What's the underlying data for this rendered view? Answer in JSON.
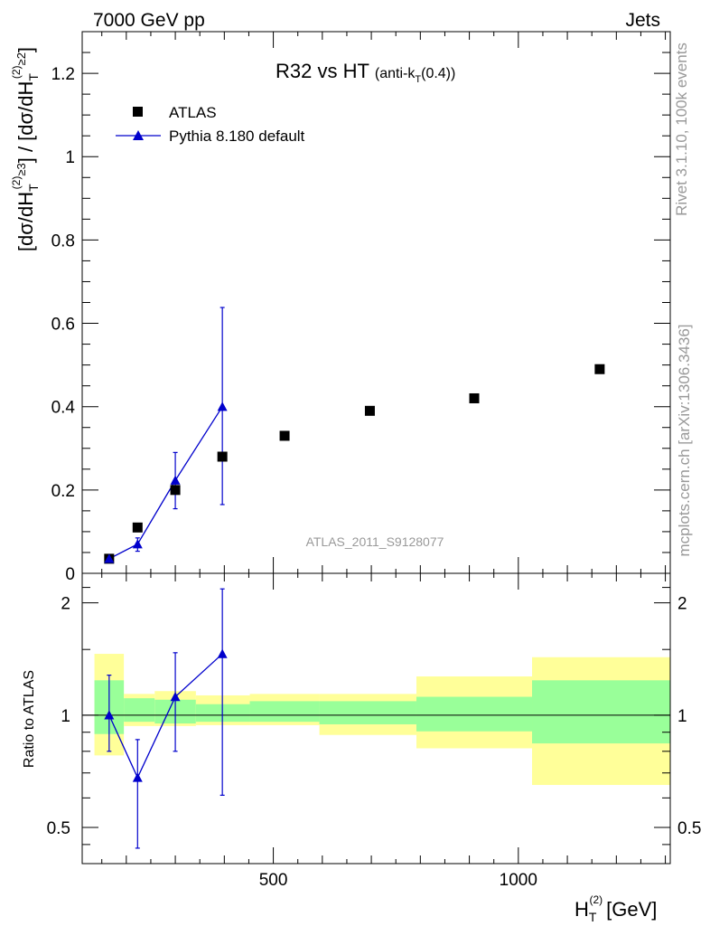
{
  "header": {
    "energy_label": "7000 GeV pp",
    "process_label": "Jets"
  },
  "side_labels": {
    "rivet": "Rivet 3.1.10,  100k events",
    "mcplots": "mcplots.cern.ch [arXiv:1306.3436]"
  },
  "colors": {
    "data": "#000000",
    "mc": "#0000cc",
    "band_outer": "#ffff99",
    "band_inner": "#99ff99",
    "watermark": "#999999"
  },
  "chart_data": [
    {
      "type": "scatter",
      "panel": "main",
      "title": "R32 vs HT",
      "title_suffix": "(anti-k_T(0.4))",
      "analysis_id": "ATLAS_2011_S9128077",
      "xlabel": "H_T^(2) [GeV]",
      "ylabel": "[dσ/dH_T^(2)]^≥3 / [dσ/dH_T^(2)]^≥2",
      "xlim": [
        110,
        1310
      ],
      "ylim": [
        0,
        1.3
      ],
      "yticks": [
        0,
        0.2,
        0.4,
        0.6,
        0.8,
        1,
        1.2
      ],
      "ytick_labels": [
        "0",
        "0.2",
        "0.4",
        "0.6",
        "0.8",
        "1",
        "1.2"
      ],
      "legend_position": "top-left",
      "series": [
        {
          "name": "ATLAS",
          "marker": "square",
          "x": [
            165,
            223,
            300,
            396,
            523,
            697,
            910,
            1166
          ],
          "y": [
            0.035,
            0.11,
            0.2,
            0.28,
            0.33,
            0.39,
            0.42,
            0.49
          ]
        },
        {
          "name": "Pythia 8.180 default",
          "marker": "triangle",
          "line": true,
          "x": [
            165,
            223,
            300,
            396
          ],
          "y": [
            0.035,
            0.07,
            0.223,
            0.4
          ],
          "yerr_low": [
            0.035,
            0.053,
            0.155,
            0.165
          ],
          "yerr_high": [
            0.035,
            0.085,
            0.29,
            0.638
          ]
        }
      ]
    },
    {
      "type": "scatter",
      "panel": "ratio",
      "ylabel": "Ratio to ATLAS",
      "xlabel": "H_T^(2) [GeV]",
      "xlim": [
        110,
        1310
      ],
      "ylim": [
        0.4,
        2.4
      ],
      "yscale": "log",
      "yticks": [
        0.5,
        1,
        2
      ],
      "ytick_labels": [
        "0.5",
        "1",
        "2"
      ],
      "xticks": [
        500,
        1000
      ],
      "xtick_labels": [
        "500",
        "1000"
      ],
      "reference_line": 1,
      "bands": [
        {
          "x0": 135,
          "x1": 195,
          "outer": [
            0.78,
            1.46
          ],
          "inner": [
            0.89,
            1.24
          ]
        },
        {
          "x0": 195,
          "x1": 258,
          "outer": [
            0.935,
            1.14
          ],
          "inner": [
            0.96,
            1.11
          ]
        },
        {
          "x0": 258,
          "x1": 342,
          "outer": [
            0.935,
            1.16
          ],
          "inner": [
            0.95,
            1.1
          ]
        },
        {
          "x0": 342,
          "x1": 452,
          "outer": [
            0.94,
            1.13
          ],
          "inner": [
            0.96,
            1.07
          ]
        },
        {
          "x0": 452,
          "x1": 594,
          "outer": [
            0.94,
            1.14
          ],
          "inner": [
            0.96,
            1.09
          ]
        },
        {
          "x0": 594,
          "x1": 792,
          "outer": [
            0.885,
            1.14
          ],
          "inner": [
            0.945,
            1.09
          ]
        },
        {
          "x0": 792,
          "x1": 1028,
          "outer": [
            0.815,
            1.27
          ],
          "inner": [
            0.905,
            1.12
          ]
        },
        {
          "x0": 1028,
          "x1": 1310,
          "outer": [
            0.65,
            1.43
          ],
          "inner": [
            0.84,
            1.24
          ]
        }
      ],
      "series": [
        {
          "name": "Pythia 8.180 default / ATLAS",
          "marker": "triangle",
          "line": true,
          "x": [
            165,
            223,
            300,
            396
          ],
          "y": [
            1.0,
            0.68,
            1.12,
            1.46
          ],
          "yerr_low": [
            0.8,
            0.44,
            0.8,
            0.61
          ],
          "yerr_high": [
            1.28,
            0.86,
            1.47,
            2.18
          ]
        }
      ]
    }
  ]
}
